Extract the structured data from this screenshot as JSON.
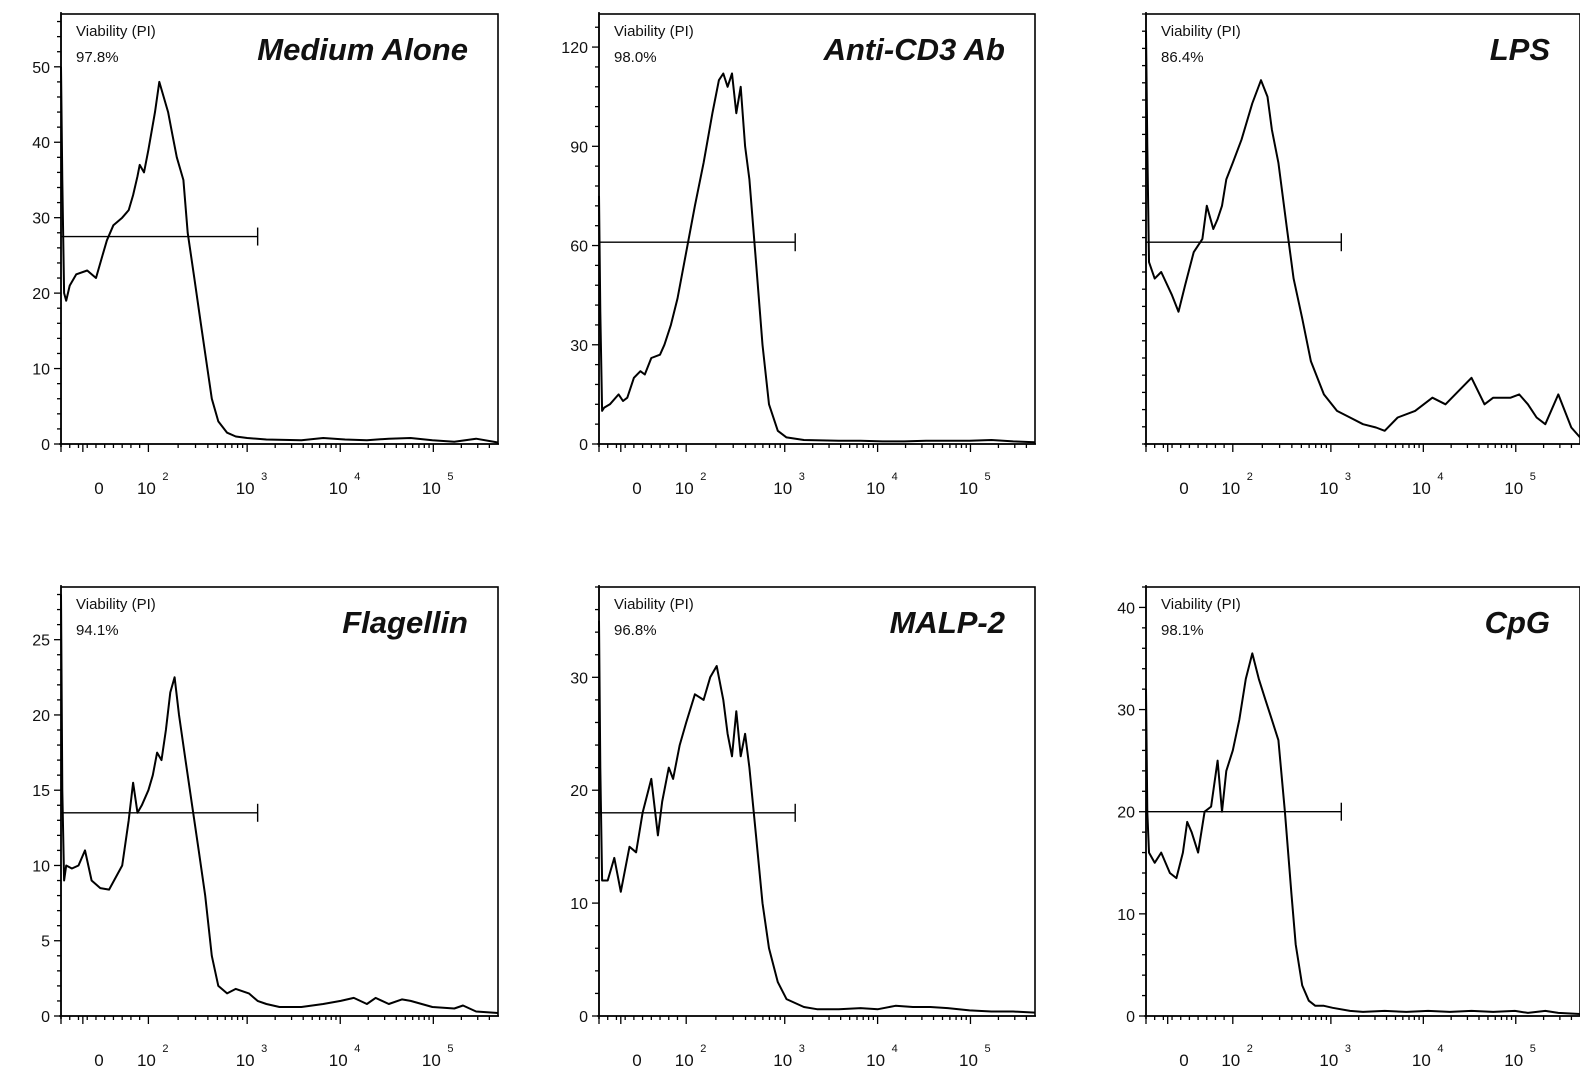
{
  "figure": {
    "x_axis": {
      "ticks": [
        {
          "label": "0",
          "base": "",
          "exp": "",
          "pos": 0
        },
        {
          "label": "",
          "base": "10",
          "exp": "2",
          "pos": 0.2
        },
        {
          "label": "",
          "base": "10",
          "exp": "3",
          "pos": 0.426
        },
        {
          "label": "",
          "base": "10",
          "exp": "4",
          "pos": 0.639
        },
        {
          "label": "",
          "base": "10",
          "exp": "5",
          "pos": 0.852
        }
      ]
    }
  },
  "chart_data": [
    {
      "type": "line",
      "title": "Medium Alone",
      "gate": {
        "name": "Viability (PI)",
        "value": "97.8%",
        "y": 27.5,
        "x_range": [
          0,
          0.45
        ]
      },
      "ylim": [
        0,
        57
      ],
      "yticks": [
        0,
        10,
        20,
        30,
        40,
        50
      ],
      "x": [
        0,
        0.003,
        0.007,
        0.012,
        0.02,
        0.035,
        0.06,
        0.08,
        0.095,
        0.105,
        0.12,
        0.14,
        0.155,
        0.165,
        0.175,
        0.18,
        0.19,
        0.2,
        0.215,
        0.225,
        0.235,
        0.245,
        0.255,
        0.265,
        0.28,
        0.29,
        0.305,
        0.32,
        0.335,
        0.345,
        0.36,
        0.38,
        0.4,
        0.426,
        0.47,
        0.55,
        0.6,
        0.65,
        0.7,
        0.75,
        0.8,
        0.85,
        0.9,
        0.95,
        1.0
      ],
      "y": [
        50,
        35,
        20,
        19,
        21,
        22.5,
        23,
        22,
        25,
        27,
        29,
        30,
        31,
        33,
        35.5,
        37,
        36,
        39,
        44,
        48,
        46,
        44,
        41,
        38,
        35,
        28,
        22,
        16,
        10,
        6,
        3,
        1.5,
        1,
        0.8,
        0.6,
        0.5,
        0.8,
        0.6,
        0.5,
        0.7,
        0.8,
        0.5,
        0.3,
        0.7,
        0.2
      ]
    },
    {
      "type": "line",
      "title": "Anti-CD3 Ab",
      "gate": {
        "name": "Viability (PI)",
        "value": "98.0%",
        "y": 61,
        "x_range": [
          0,
          0.45
        ]
      },
      "ylim": [
        0,
        130
      ],
      "yticks": [
        0,
        30,
        60,
        90,
        120
      ],
      "x": [
        0,
        0.003,
        0.007,
        0.012,
        0.025,
        0.045,
        0.055,
        0.065,
        0.08,
        0.095,
        0.105,
        0.12,
        0.14,
        0.15,
        0.165,
        0.18,
        0.2,
        0.22,
        0.24,
        0.26,
        0.275,
        0.285,
        0.295,
        0.305,
        0.315,
        0.325,
        0.335,
        0.345,
        0.36,
        0.375,
        0.39,
        0.41,
        0.43,
        0.47,
        0.55,
        0.6,
        0.65,
        0.7,
        0.75,
        0.8,
        0.85,
        0.9,
        0.95,
        1.0
      ],
      "y": [
        75,
        40,
        10,
        11,
        12,
        15,
        13,
        14,
        20,
        22,
        21,
        26,
        27,
        30,
        36,
        44,
        58,
        72,
        85,
        100,
        110,
        112,
        108,
        112,
        100,
        108,
        90,
        80,
        55,
        30,
        12,
        4,
        2,
        1.2,
        1,
        1,
        0.8,
        0.8,
        1,
        1,
        1,
        1.2,
        0.8,
        0.5
      ]
    },
    {
      "type": "line",
      "title": "LPS",
      "gate": {
        "name": "Viability (PI)",
        "value": "86.4%",
        "y": 61,
        "x_range": [
          0,
          0.45
        ]
      },
      "ylim": [
        0,
        130
      ],
      "yticks": [],
      "x": [
        0,
        0.003,
        0.007,
        0.02,
        0.035,
        0.06,
        0.075,
        0.09,
        0.11,
        0.13,
        0.14,
        0.155,
        0.165,
        0.175,
        0.185,
        0.2,
        0.22,
        0.245,
        0.265,
        0.28,
        0.29,
        0.305,
        0.325,
        0.34,
        0.36,
        0.38,
        0.41,
        0.44,
        0.47,
        0.5,
        0.53,
        0.55,
        0.58,
        0.62,
        0.66,
        0.69,
        0.72,
        0.75,
        0.78,
        0.8,
        0.84,
        0.86,
        0.88,
        0.9,
        0.92,
        0.95,
        0.98,
        1.0
      ],
      "y": [
        125,
        90,
        55,
        50,
        52,
        45,
        40,
        48,
        58,
        62,
        72,
        65,
        68,
        72,
        80,
        85,
        92,
        103,
        110,
        105,
        95,
        85,
        65,
        50,
        38,
        25,
        15,
        10,
        8,
        6,
        5,
        4,
        8,
        10,
        14,
        12,
        16,
        20,
        12,
        14,
        14,
        15,
        12,
        8,
        6,
        15,
        5,
        2
      ]
    },
    {
      "type": "line",
      "title": "Flagellin",
      "gate": {
        "name": "Viability (PI)",
        "value": "94.1%",
        "y": 13.5,
        "x_range": [
          0,
          0.45
        ]
      },
      "ylim": [
        0,
        28.5
      ],
      "yticks": [
        0,
        5,
        10,
        15,
        20,
        25
      ],
      "x": [
        0,
        0.003,
        0.007,
        0.012,
        0.025,
        0.04,
        0.055,
        0.07,
        0.09,
        0.11,
        0.14,
        0.155,
        0.165,
        0.175,
        0.185,
        0.2,
        0.21,
        0.22,
        0.23,
        0.24,
        0.25,
        0.26,
        0.27,
        0.285,
        0.3,
        0.315,
        0.33,
        0.345,
        0.36,
        0.38,
        0.4,
        0.43,
        0.45,
        0.47,
        0.5,
        0.55,
        0.6,
        0.64,
        0.67,
        0.7,
        0.72,
        0.75,
        0.78,
        0.8,
        0.85,
        0.9,
        0.92,
        0.95,
        1.0
      ],
      "y": [
        28,
        15,
        9,
        10,
        9.8,
        10,
        11,
        9,
        8.5,
        8.4,
        10,
        13,
        15.5,
        13.5,
        14,
        15,
        16,
        17.5,
        17,
        19,
        21.5,
        22.5,
        20,
        17,
        14,
        11,
        8,
        4,
        2,
        1.5,
        1.8,
        1.5,
        1,
        0.8,
        0.6,
        0.6,
        0.8,
        1,
        1.2,
        0.8,
        1.2,
        0.8,
        1.1,
        1,
        0.6,
        0.5,
        0.7,
        0.3,
        0.2
      ]
    },
    {
      "type": "line",
      "title": "MALP-2",
      "gate": {
        "name": "Viability (PI)",
        "value": "96.8%",
        "y": 18,
        "x_range": [
          0,
          0.45
        ]
      },
      "ylim": [
        0,
        38
      ],
      "yticks": [
        0,
        10,
        20,
        30
      ],
      "x": [
        0,
        0.003,
        0.007,
        0.02,
        0.035,
        0.05,
        0.07,
        0.085,
        0.1,
        0.12,
        0.135,
        0.145,
        0.16,
        0.17,
        0.185,
        0.2,
        0.22,
        0.24,
        0.255,
        0.27,
        0.275,
        0.285,
        0.295,
        0.305,
        0.315,
        0.325,
        0.335,
        0.345,
        0.36,
        0.375,
        0.39,
        0.41,
        0.43,
        0.47,
        0.5,
        0.55,
        0.6,
        0.64,
        0.68,
        0.72,
        0.76,
        0.8,
        0.85,
        0.9,
        0.95,
        1.0
      ],
      "y": [
        35,
        22,
        12,
        12,
        14,
        11,
        15,
        14.5,
        18,
        21,
        16,
        19,
        22,
        21,
        24,
        26,
        28.5,
        28,
        30,
        31,
        30,
        28,
        25,
        23,
        27,
        23,
        25,
        22,
        16,
        10,
        6,
        3,
        1.5,
        0.8,
        0.6,
        0.6,
        0.7,
        0.6,
        0.9,
        0.8,
        0.8,
        0.7,
        0.5,
        0.4,
        0.4,
        0.3
      ]
    },
    {
      "type": "line",
      "title": "CpG",
      "gate": {
        "name": "Viability (PI)",
        "value": "98.1%",
        "y": 20,
        "x_range": [
          0,
          0.45
        ]
      },
      "ylim": [
        0,
        42
      ],
      "yticks": [
        0,
        10,
        20,
        30,
        40
      ],
      "x": [
        0,
        0.003,
        0.007,
        0.02,
        0.035,
        0.055,
        0.07,
        0.085,
        0.095,
        0.105,
        0.12,
        0.135,
        0.15,
        0.165,
        0.175,
        0.185,
        0.2,
        0.215,
        0.23,
        0.245,
        0.26,
        0.275,
        0.29,
        0.305,
        0.32,
        0.335,
        0.345,
        0.36,
        0.375,
        0.39,
        0.41,
        0.43,
        0.47,
        0.5,
        0.55,
        0.6,
        0.65,
        0.7,
        0.75,
        0.8,
        0.85,
        0.88,
        0.92,
        0.95,
        1.0
      ],
      "y": [
        32,
        20,
        16,
        15,
        16,
        14,
        13.5,
        16,
        19,
        18,
        16,
        20,
        20.5,
        25,
        20,
        24,
        26,
        29,
        33,
        35.5,
        33,
        31,
        29,
        27,
        20,
        12,
        7,
        3,
        1.5,
        1,
        1,
        0.8,
        0.5,
        0.4,
        0.5,
        0.4,
        0.5,
        0.4,
        0.5,
        0.4,
        0.5,
        0.3,
        0.5,
        0.3,
        0.2
      ]
    }
  ]
}
